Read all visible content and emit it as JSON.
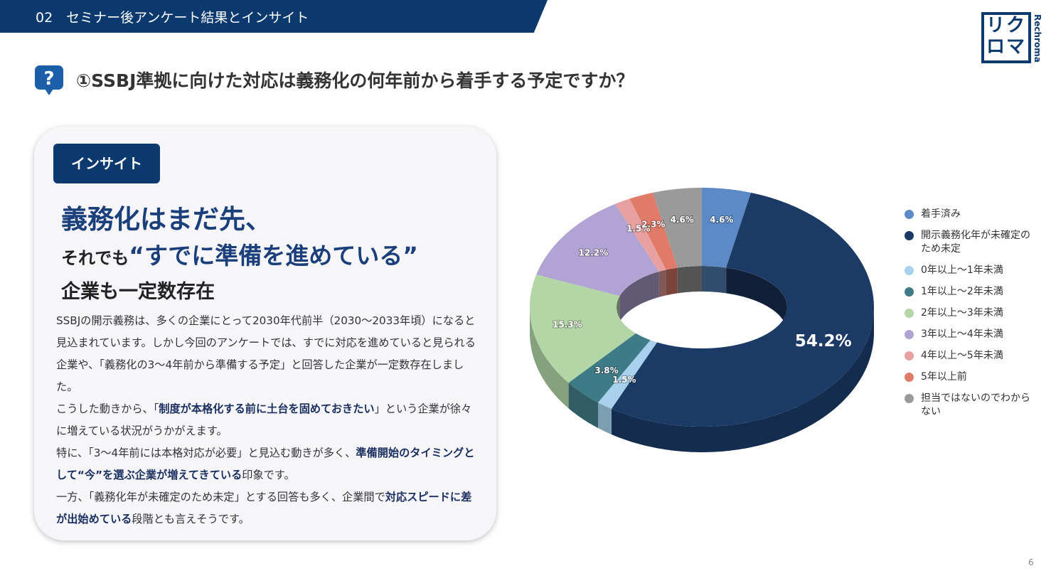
{
  "header": {
    "title": "02　セミナー後アンケート結果とインサイト",
    "question": "①SSBJ準拠に向けた対応は義務化の何年前から着手する予定ですか？",
    "logo": "リク\nロマ",
    "logo_sub": "Rechroma",
    "page": "6"
  },
  "insight": {
    "tag": "インサイト",
    "headline1": "義務化はまだ先、",
    "headline2a": "それでも",
    "headline2b": "“すでに準備を進めている”",
    "headline3": "企業も一定数存在",
    "paragraphs": [
      [
        "SSBJの開示義務は、多くの企業にとって2030年代前半（2030〜2033年頃）になると見込まれています。しかし今回のアンケートでは、すでに対応を進めていると見られる企業や、「義務化の3〜4年前から準備する予定」と回答した企業が一定数存在しました。"
      ],
      [
        "こうした動きから、「",
        "制度が本格化する前に土台を固めておきたい",
        "」という企業が徐々に増えている状況がうかがえます。"
      ],
      [
        " 特に、「3〜4年前には本格対応が必要」と見込む動きが多く、",
        "準備開始のタイミングとして“今”を選ぶ企業が増えてきている",
        "印象です。"
      ],
      [
        "一方、「義務化年が未確定のため未定」とする回答も多く、企業間で",
        "対応スピードに差が出始めている",
        "段階とも言えそうです。"
      ]
    ]
  },
  "chart_data": {
    "type": "pie",
    "donut": true,
    "legend": "right",
    "categories": [
      "着手済み",
      "開示義務化年が未確定のため未定",
      "0年以上～1年未満",
      "1年以上～2年未満",
      "2年以上～3年未満",
      "3年以上～4年未満",
      "4年以上～5年未満",
      "5年以上前",
      "担当ではないのでわからない"
    ],
    "values": [
      4.6,
      54.2,
      1.5,
      3.8,
      15.3,
      12.2,
      1.5,
      2.3,
      4.6
    ],
    "value_labels": [
      "4.6%",
      "54.2%",
      "1.5%",
      "3.8%",
      "15.3%",
      "12.2%",
      "1.5%",
      "2.3%",
      "4.6%"
    ],
    "colors": [
      "#5b8ac6",
      "#1b3a66",
      "#a7d1ec",
      "#3f7b86",
      "#b3d6a6",
      "#b1a3d4",
      "#e9a0a0",
      "#e07b6a",
      "#9a9a9a"
    ]
  }
}
